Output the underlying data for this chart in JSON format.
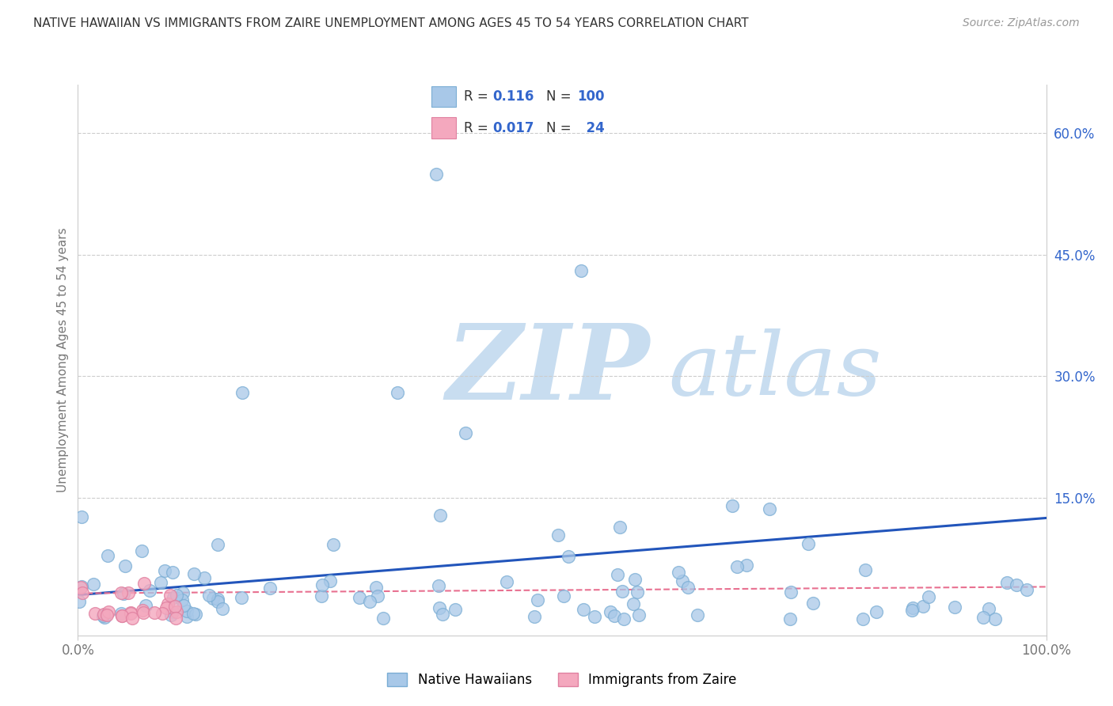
{
  "title": "NATIVE HAWAIIAN VS IMMIGRANTS FROM ZAIRE UNEMPLOYMENT AMONG AGES 45 TO 54 YEARS CORRELATION CHART",
  "source": "Source: ZipAtlas.com",
  "ylabel": "Unemployment Among Ages 45 to 54 years",
  "xlim": [
    0,
    100
  ],
  "ylim": [
    -2,
    67
  ],
  "xtick_labels": [
    "0.0%",
    "100.0%"
  ],
  "ytick_values": [
    15,
    30,
    45,
    60
  ],
  "ytick_labels": [
    "15.0%",
    "30.0%",
    "45.0%",
    "60.0%"
  ],
  "blue_face": "#a8c8e8",
  "blue_edge": "#7aadd4",
  "pink_face": "#f4a8be",
  "pink_edge": "#e080a0",
  "trend_blue": "#2255bb",
  "trend_pink": "#e87090",
  "blue_trend_y0": 3.0,
  "blue_trend_y1": 12.5,
  "pink_trend_y0": 3.2,
  "pink_trend_y1": 4.0,
  "legend_blue": "Native Hawaiians",
  "legend_pink": "Immigrants from Zaire",
  "r_blue": "0.116",
  "n_blue": "100",
  "r_pink": "0.017",
  "n_pink": "24",
  "watermark_zip_color": "#c8ddf0",
  "watermark_atlas_color": "#c8ddf0",
  "grid_color": "#cccccc",
  "title_color": "#333333",
  "source_color": "#999999",
  "label_color": "#777777",
  "tick_color_y": "#3366cc",
  "tick_color_x": "#777777",
  "accent_blue": "#3366cc"
}
